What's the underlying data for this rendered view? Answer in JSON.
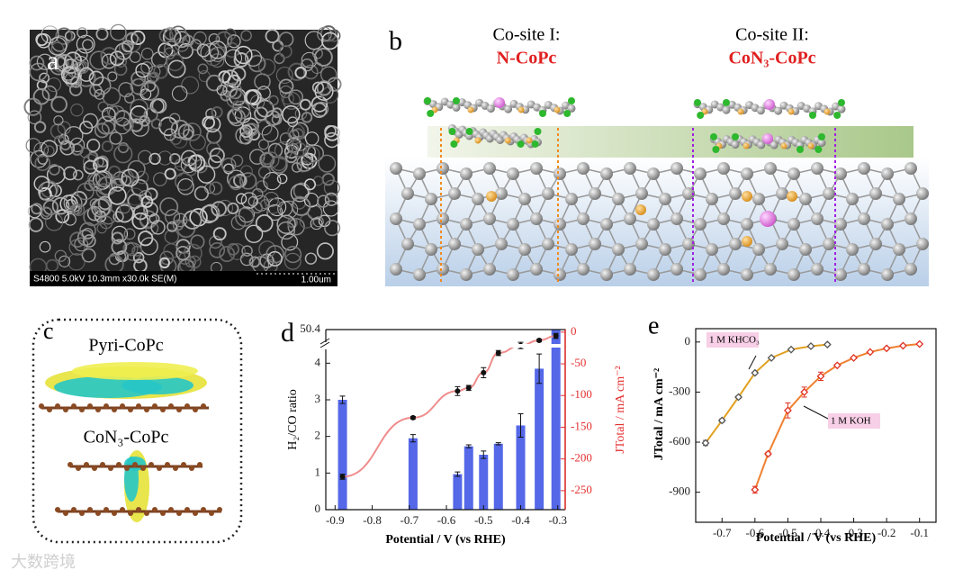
{
  "panels": {
    "a": {
      "label": "a",
      "info": "S4800 5.0kV 10.3mm x30.0k SE(M)",
      "scale": "1.00um"
    },
    "b": {
      "label": "b",
      "site1": "Co-site I:",
      "site1_name": "N-CoPc",
      "site2": "Co-site II:",
      "site2_name": "CoN₃-CoPc"
    },
    "c": {
      "label": "c",
      "top": "Pyri-CoPc",
      "bottom": "CoN₃-CoPc"
    }
  },
  "watermark": "大数跨境",
  "chart_data": [
    {
      "type": "bar",
      "panel_label": "d",
      "xlabel": "Potential / V (vs RHE)",
      "ylabel": "H₂/CO ratio",
      "y2label": "JTotal / mA cm⁻²",
      "x": [
        -0.88,
        -0.69,
        -0.57,
        -0.54,
        -0.5,
        -0.46,
        -0.4,
        -0.35,
        -0.305
      ],
      "series": [
        {
          "type": "bar",
          "color": "#5468e8",
          "values": [
            3.0,
            1.95,
            0.97,
            1.73,
            1.5,
            1.8,
            2.3,
            3.85,
            50.4
          ],
          "errors": [
            0.1,
            0.1,
            0.06,
            0.04,
            0.1,
            0.03,
            0.32,
            0.4,
            null
          ]
        },
        {
          "type": "line",
          "axis": "y2",
          "color": "#f08c8c",
          "marker_color": "#111111",
          "values": [
            -228,
            -135,
            -93,
            -88,
            -64,
            -33,
            -21,
            -13,
            -6
          ],
          "errors": [
            4,
            2,
            7,
            4,
            8,
            4,
            5,
            2,
            4
          ]
        }
      ],
      "xlim": [
        -0.925,
        -0.28
      ],
      "xticks": [
        -0.9,
        -0.8,
        -0.7,
        -0.6,
        -0.5,
        -0.4,
        -0.3
      ],
      "ylim": [
        0,
        50.4
      ],
      "ybreak": [
        4.5,
        50
      ],
      "yticks": [
        0,
        1,
        2,
        3,
        4,
        50.4
      ],
      "y2lim": [
        -280,
        4
      ],
      "y2ticks": [
        0,
        -50,
        -100,
        -150,
        -200,
        -250
      ],
      "y2color": "#e53030"
    },
    {
      "type": "line",
      "panel_label": "e",
      "xlabel": "Potential / V (vs RHE)",
      "ylabel": "JTotal / mA cm⁻²",
      "xlim": [
        -0.78,
        -0.05
      ],
      "xticks": [
        -0.7,
        -0.6,
        -0.5,
        -0.4,
        -0.3,
        -0.2,
        -0.1
      ],
      "ylim": [
        -1080,
        80
      ],
      "yticks": [
        0,
        -300,
        -600,
        -900
      ],
      "series": [
        {
          "name": "1 M KHCO₃",
          "color": "#e0a020",
          "marker_color": "#555555",
          "x": [
            -0.75,
            -0.7,
            -0.65,
            -0.6,
            -0.55,
            -0.49,
            -0.43,
            -0.38
          ],
          "values": [
            -605,
            -470,
            -330,
            -185,
            -95,
            -45,
            -25,
            -15
          ],
          "errors": [
            15,
            10,
            8,
            5,
            3,
            3,
            3,
            3
          ]
        },
        {
          "name": "1 M KOH",
          "color": "#f08030",
          "marker_color": "#e03020",
          "x": [
            -0.6,
            -0.56,
            -0.5,
            -0.45,
            -0.4,
            -0.35,
            -0.3,
            -0.25,
            -0.2,
            -0.15,
            -0.1
          ],
          "values": [
            -885,
            -670,
            -410,
            -300,
            -205,
            -140,
            -95,
            -60,
            -38,
            -22,
            -12
          ],
          "errors": [
            20,
            10,
            45,
            30,
            25,
            5,
            5,
            5,
            3,
            3,
            3
          ]
        }
      ]
    }
  ]
}
